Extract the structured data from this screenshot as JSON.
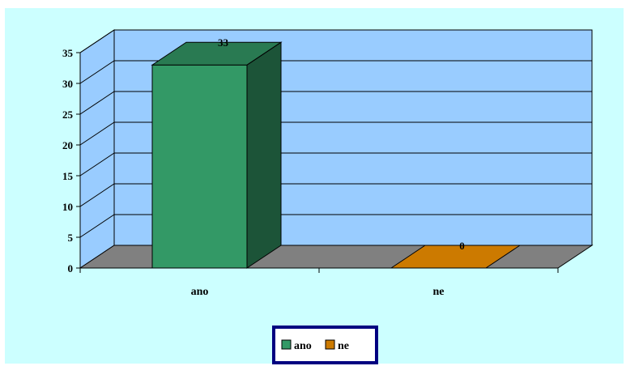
{
  "chart_data": {
    "type": "bar",
    "categories": [
      "ano",
      "ne"
    ],
    "values": [
      33,
      0
    ],
    "data_labels": [
      "33",
      "0"
    ],
    "ylim": [
      0,
      35
    ],
    "yticks": [
      "0",
      "5",
      "10",
      "15",
      "20",
      "25",
      "30",
      "35"
    ],
    "grid": true,
    "legend_placement": "bottom",
    "legend": [
      "ano",
      "ne"
    ],
    "colors": {
      "ano": "#339966",
      "ne": "#cc7a00",
      "wall": "#99ccff",
      "floor": "#808080",
      "background": "#ccffff",
      "legend_border": "#000080"
    }
  }
}
